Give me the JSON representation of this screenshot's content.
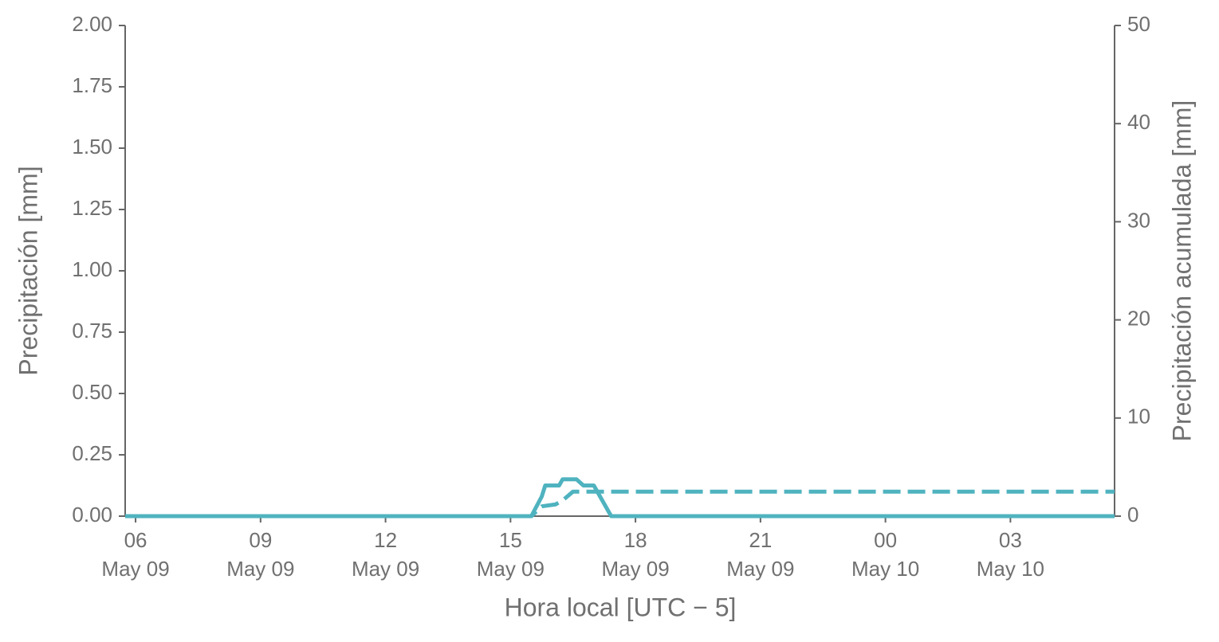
{
  "chart_data": {
    "type": "line",
    "x": [
      "May 09 05:45",
      "May 09 15:30",
      "May 09 15:45",
      "May 09 15:50",
      "May 09 16:05",
      "May 09 16:10",
      "May 09 16:15",
      "May 09 16:30",
      "May 09 16:35",
      "May 09 16:45",
      "May 09 17:00",
      "May 09 17:25",
      "May 10 05:30"
    ],
    "series": [
      {
        "color": "#4fb3bf",
        "style": "solid",
        "values": [
          0,
          0,
          0.08,
          0.125,
          0.125,
          0.125,
          0.15,
          0.15,
          0.15,
          0.125,
          0.125,
          0,
          0
        ]
      },
      {
        "color": "#4fb3bf",
        "style": "dashed",
        "axis": "y2",
        "values": [
          0,
          0,
          1,
          1.05,
          1.2,
          1.4,
          1.6,
          2.5,
          2.5,
          2.5,
          2.5,
          2.5,
          2.5
        ]
      }
    ],
    "xlim": [
      "May 09 05:45",
      "May 10 05:30"
    ],
    "xticks": [
      {
        "value": "May 09 06:00",
        "label": "06\nMay 09"
      },
      {
        "value": "May 09 09:00",
        "label": "09\nMay 09"
      },
      {
        "value": "May 09 12:00",
        "label": "12\nMay 09"
      },
      {
        "value": "May 09 15:00",
        "label": "15\nMay 09"
      },
      {
        "value": "May 09 18:00",
        "label": "18\nMay 09"
      },
      {
        "value": "May 09 21:00",
        "label": "21\nMay 09"
      },
      {
        "value": "May 10 00:00",
        "label": "00\nMay 10"
      },
      {
        "value": "May 10 03:00",
        "label": "03\nMay 10"
      }
    ],
    "ylim": [
      0,
      2
    ],
    "yticks": [
      {
        "value": 0,
        "label": "0.00"
      },
      {
        "value": 0.25,
        "label": "0.25"
      },
      {
        "value": 0.5,
        "label": "0.50"
      },
      {
        "value": 0.75,
        "label": "0.75"
      },
      {
        "value": 1,
        "label": "1.00"
      },
      {
        "value": 1.25,
        "label": "1.25"
      },
      {
        "value": 1.5,
        "label": "1.50"
      },
      {
        "value": 1.75,
        "label": "1.75"
      },
      {
        "value": 2,
        "label": "2.00"
      }
    ],
    "y2lim": [
      0,
      50
    ],
    "y2ticks": [
      0,
      10,
      20,
      30,
      40,
      50
    ],
    "xlabel": "Hora local [UTC − 5]",
    "ylabel": "Precipitación [mm]",
    "y2label": "Precipitación acumulada [mm]"
  }
}
